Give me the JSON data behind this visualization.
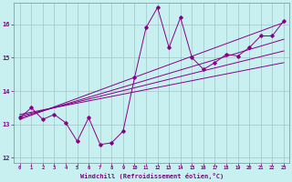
{
  "xlabel": "Windchill (Refroidissement éolien,°C)",
  "bg_color": "#c8f0f0",
  "line_color": "#880088",
  "grid_color": "#aacccc",
  "x_data": [
    0,
    1,
    2,
    3,
    4,
    5,
    6,
    7,
    8,
    9,
    10,
    11,
    12,
    13,
    14,
    15,
    16,
    17,
    18,
    19,
    20,
    21,
    22,
    23
  ],
  "y_main": [
    13.2,
    13.5,
    13.15,
    13.3,
    13.05,
    12.5,
    13.2,
    12.4,
    12.45,
    12.8,
    14.4,
    15.9,
    16.5,
    15.3,
    16.2,
    15.0,
    14.65,
    14.85,
    15.1,
    15.05,
    15.3,
    15.65,
    15.65,
    16.1
  ],
  "ylim": [
    11.85,
    16.65
  ],
  "xlim": [
    -0.5,
    23.5
  ],
  "yticks": [
    12,
    13,
    14,
    15,
    16
  ],
  "xticks": [
    0,
    1,
    2,
    3,
    4,
    5,
    6,
    7,
    8,
    9,
    10,
    11,
    12,
    13,
    14,
    15,
    16,
    17,
    18,
    19,
    20,
    21,
    22,
    23
  ],
  "trend_lines": [
    {
      "x0": 0,
      "y0": 13.15,
      "x1": 23,
      "y1": 16.05
    },
    {
      "x0": 0,
      "y0": 13.2,
      "x1": 23,
      "y1": 15.55
    },
    {
      "x0": 0,
      "y0": 13.25,
      "x1": 23,
      "y1": 15.2
    },
    {
      "x0": 0,
      "y0": 13.3,
      "x1": 23,
      "y1": 14.85
    }
  ]
}
